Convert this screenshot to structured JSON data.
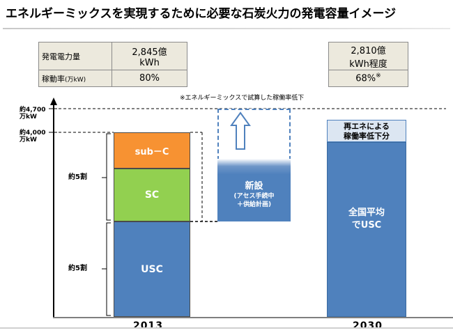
{
  "title": "エネルギーミックスを実現するために必要な石炭火力の発電容量イメージ",
  "table_left": {
    "row1_label": "発電電力量",
    "row1_value_line1": "2,845億",
    "row1_value_line2": "kWh",
    "row2_label_main": "稼動率",
    "row2_label_unit": "(万kW)",
    "row2_value": "80%"
  },
  "table_right": {
    "value_line1": "2,810億",
    "value_line2": "kWh程度",
    "rate": "68%",
    "rate_mark": "※"
  },
  "note": "※エネルギーミックスで試算した稼働率低下",
  "y_labels": {
    "label_4700_line1": "約4,700",
    "label_4700_line2": "万kW",
    "label_4000_line1": "約4,000",
    "label_4000_line2": "万kW"
  },
  "brackets": {
    "upper": "約5割",
    "lower": "約5割"
  },
  "bar_2013": {
    "segments": [
      "sub－C",
      "SC",
      "USC"
    ]
  },
  "new_block": {
    "title": "新設",
    "sub_line1": "(アセス手続中",
    "sub_line2": "＋供給計画)"
  },
  "bar_2030": {
    "top_line1": "再エネによる",
    "top_line2": "稼働率低下分",
    "main_line1": "全国平均",
    "main_line2": "でUSC"
  },
  "x_labels": [
    "2013",
    "2030"
  ],
  "colors": {
    "subc": "#f79232",
    "sc": "#92d050",
    "usc": "#4f81bd",
    "table_bg": "#ece9dd"
  }
}
